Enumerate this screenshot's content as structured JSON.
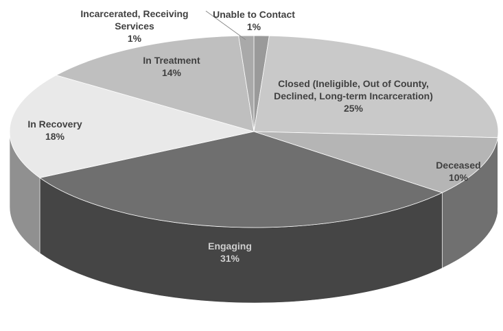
{
  "chart_data": {
    "type": "pie3d",
    "categories": [
      "Unable to Contact",
      "Closed (Ineligible, Out of County, Declined, Long-term Incarceration)",
      "Deceased",
      "Engaging",
      "In Recovery",
      "In Treatment",
      "Incarcerated, Receiving Services"
    ],
    "values": [
      1,
      25,
      10,
      31,
      18,
      14,
      1
    ],
    "value_labels": [
      "1%",
      "25%",
      "10%",
      "31%",
      "18%",
      "14%",
      "1%"
    ],
    "colors": [
      "#9a9a9a",
      "#c9c9c9",
      "#b5b5b5",
      "#6f6f6f",
      "#e9e9e9",
      "#bfbfbf",
      "#a9a9a9"
    ]
  }
}
